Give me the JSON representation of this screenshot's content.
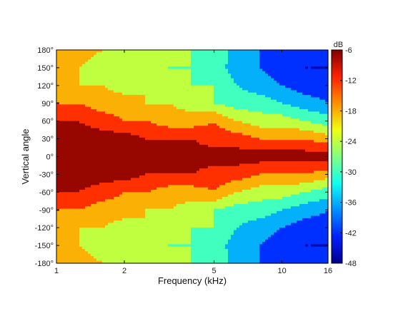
{
  "chart_data": {
    "type": "heatmap",
    "title": "",
    "xlabel": "Frequency (kHz)",
    "ylabel": "Vertical angle",
    "x_scale": "log",
    "xlim": [
      1,
      16
    ],
    "ylim": [
      -180,
      180
    ],
    "x_ticks": [
      {
        "value": 1,
        "label": "1"
      },
      {
        "value": 2,
        "label": "2"
      },
      {
        "value": 5,
        "label": "5"
      },
      {
        "value": 10,
        "label": "10"
      },
      {
        "value": 16,
        "label": "16"
      }
    ],
    "y_ticks": [
      {
        "value": 180,
        "label": "180°"
      },
      {
        "value": 150,
        "label": "150°"
      },
      {
        "value": 120,
        "label": "120°"
      },
      {
        "value": 90,
        "label": "90°"
      },
      {
        "value": 60,
        "label": "60°"
      },
      {
        "value": 30,
        "label": "30°"
      },
      {
        "value": 0,
        "label": "0°"
      },
      {
        "value": -30,
        "label": "-30°"
      },
      {
        "value": -60,
        "label": "-60°"
      },
      {
        "value": -90,
        "label": "-90°"
      },
      {
        "value": -120,
        "label": "-120°"
      },
      {
        "value": -150,
        "label": "-150°"
      },
      {
        "value": -180,
        "label": "-180°"
      }
    ],
    "colorbar": {
      "unit": "dB",
      "range": [
        -48,
        -6
      ],
      "ticks": [
        {
          "value": -6,
          "label": "-6"
        },
        {
          "value": -12,
          "label": "-12"
        },
        {
          "value": -18,
          "label": "-18"
        },
        {
          "value": -24,
          "label": "-24"
        },
        {
          "value": -30,
          "label": "-30"
        },
        {
          "value": -36,
          "label": "-36"
        },
        {
          "value": -42,
          "label": "-42"
        },
        {
          "value": -48,
          "label": "-48"
        }
      ],
      "colors": [
        "#00008f",
        "#0020ff",
        "#0090ff",
        "#10ffef",
        "#80ff80",
        "#efff10",
        "#ff9000",
        "#ff2000",
        "#800000"
      ]
    },
    "contour_levels_db": [
      -45,
      -39,
      -33,
      -27,
      -21,
      -15,
      -9
    ],
    "grid": false,
    "data": {
      "frequencies_khz": [
        1,
        1.25,
        1.6,
        2,
        2.5,
        3.15,
        4,
        5,
        6.3,
        8,
        10,
        12.5,
        16
      ],
      "angles_deg": [
        180,
        150,
        120,
        90,
        60,
        30,
        0,
        -30,
        -60,
        -90,
        -120,
        -150,
        -180
      ],
      "level_db": [
        [
          -15,
          -18,
          -21,
          -24,
          -24,
          -24,
          -27,
          -27,
          -36,
          -39,
          -42,
          -44,
          -44
        ],
        [
          -15,
          -21,
          -24,
          -27,
          -24,
          -27,
          -27,
          -30,
          -36,
          -39,
          -42,
          -45,
          -45
        ],
        [
          -21,
          -21,
          -21,
          -24,
          -21,
          -24,
          -27,
          -27,
          -33,
          -36,
          -39,
          -42,
          -42
        ],
        [
          -15,
          -15,
          -18,
          -18,
          -21,
          -21,
          -24,
          -27,
          -30,
          -30,
          -33,
          -36,
          -39
        ],
        [
          -9,
          -9,
          -12,
          -15,
          -15,
          -18,
          -18,
          -15,
          -21,
          -24,
          -24,
          -27,
          -30
        ],
        [
          -6,
          -6,
          -6,
          -6,
          -9,
          -9,
          -9,
          -12,
          -12,
          -15,
          -15,
          -15,
          -18
        ],
        [
          -6,
          -6,
          -6,
          -6,
          -6,
          -6,
          -6,
          -6,
          -6,
          -6,
          -6,
          -6,
          -6
        ],
        [
          -6,
          -6,
          -6,
          -6,
          -9,
          -9,
          -9,
          -12,
          -12,
          -15,
          -15,
          -15,
          -18
        ],
        [
          -9,
          -9,
          -12,
          -15,
          -15,
          -18,
          -18,
          -15,
          -21,
          -24,
          -24,
          -27,
          -30
        ],
        [
          -15,
          -15,
          -18,
          -18,
          -21,
          -21,
          -24,
          -27,
          -30,
          -30,
          -33,
          -36,
          -39
        ],
        [
          -21,
          -21,
          -21,
          -24,
          -21,
          -24,
          -27,
          -27,
          -33,
          -36,
          -39,
          -42,
          -42
        ],
        [
          -15,
          -21,
          -24,
          -27,
          -24,
          -27,
          -27,
          -30,
          -36,
          -39,
          -42,
          -45,
          -45
        ],
        [
          -15,
          -18,
          -21,
          -24,
          -24,
          -24,
          -27,
          -27,
          -36,
          -39,
          -42,
          -44,
          -44
        ]
      ]
    }
  }
}
